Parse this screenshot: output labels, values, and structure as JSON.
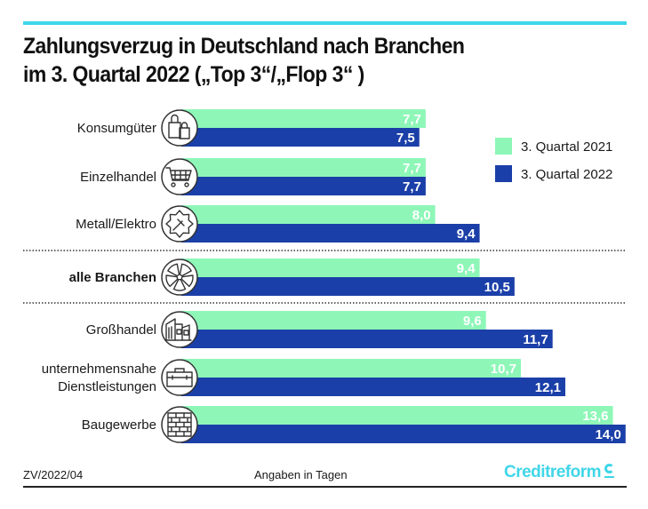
{
  "header": {
    "title_line1": "Zahlungsverzug in Deutschland nach Branchen",
    "title_line2": "im 3. Quartal 2022 („Top 3“/„Flop 3“ )"
  },
  "footer": {
    "code": "ZV/2022/04",
    "unit_note": "Angaben in Tagen",
    "brand": "Creditreform"
  },
  "colors": {
    "series_2021": "#8ef7b8",
    "series_2022": "#1b3fa8",
    "accent": "#3fd6e8",
    "label_2021": "#ffffff",
    "label_2022": "#ffffff"
  },
  "chart_data": {
    "type": "bar",
    "orientation": "horizontal",
    "title": "Zahlungsverzug in Deutschland nach Branchen im 3. Quartal 2022 („Top 3“/„Flop 3“ )",
    "xlabel": "Angaben in Tagen",
    "ylabel": "",
    "xlim": [
      0,
      14
    ],
    "grid": false,
    "legend_position": "top-right",
    "categories": [
      {
        "label": "Konsumgüter",
        "icon": "shopping-bags-icon",
        "bold": false
      },
      {
        "label": "Einzelhandel",
        "icon": "shopping-cart-icon",
        "bold": false
      },
      {
        "label": "Metall/Elektro",
        "icon": "gear-plug-icon",
        "bold": false
      },
      {
        "label": "alle Branchen",
        "icon": "pie-wheel-icon",
        "bold": true
      },
      {
        "label": "Großhandel",
        "icon": "warehouse-icon",
        "bold": false
      },
      {
        "label": "unternehmensnahe|Dienstleistungen",
        "icon": "briefcase-icon",
        "bold": false
      },
      {
        "label": "Baugewerbe",
        "icon": "brick-wall-icon",
        "bold": false
      }
    ],
    "series": [
      {
        "name": "3. Quartal 2021",
        "values": [
          7.7,
          7.7,
          8.0,
          9.4,
          9.6,
          10.7,
          13.6
        ],
        "labels": [
          "7,7",
          "7,7",
          "8,0",
          "9,4",
          "9,6",
          "10,7",
          "13,6"
        ]
      },
      {
        "name": "3. Quartal 2022",
        "values": [
          7.5,
          7.7,
          9.4,
          10.5,
          11.7,
          12.1,
          14.0
        ],
        "labels": [
          "7,5",
          "7,7",
          "9,4",
          "10,5",
          "11,7",
          "12,1",
          "14,0"
        ]
      }
    ],
    "separators_after_index": [
      2,
      3
    ]
  }
}
